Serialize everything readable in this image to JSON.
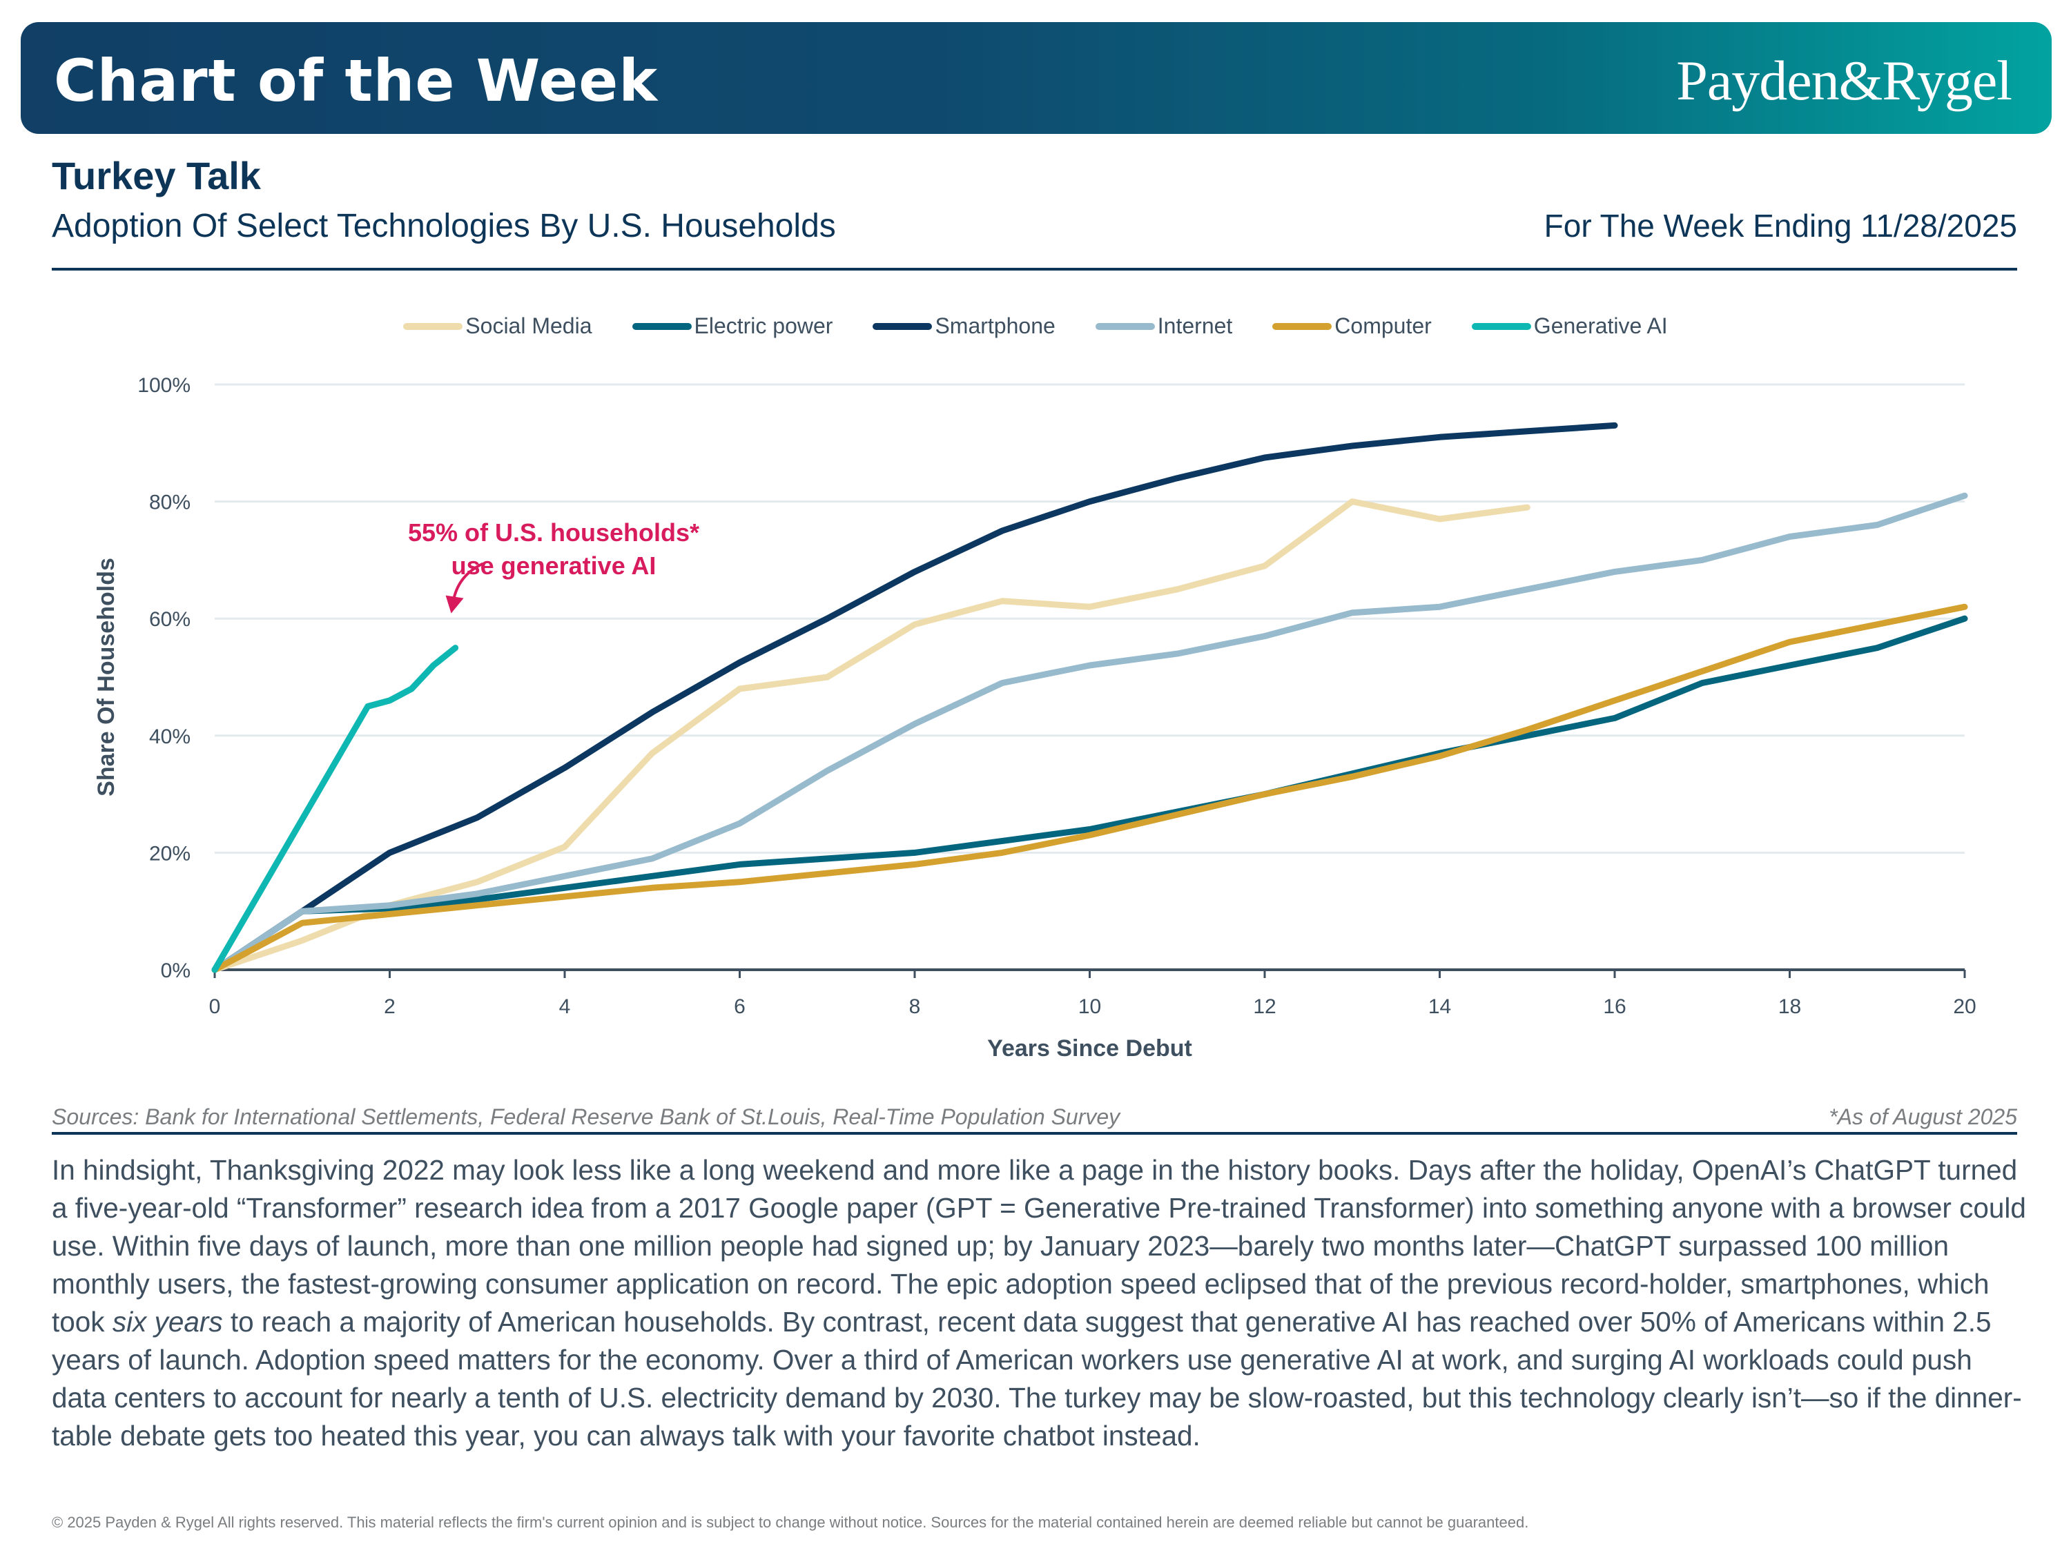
{
  "banner": {
    "title": "Chart of the Week",
    "logo": "Payden&Rygel"
  },
  "header": {
    "title": "Turkey Talk",
    "subtitle": "Adoption Of Select Technologies By U.S. Households",
    "week": "For The Week Ending 11/28/2025"
  },
  "chart_data": {
    "type": "line",
    "title": "Adoption Of Select Technologies By U.S. Households",
    "xlabel": "Years Since Debut",
    "ylabel": "Share Of Households",
    "xlim": [
      0,
      20
    ],
    "ylim": [
      0,
      100
    ],
    "xticks": [
      0,
      2,
      4,
      6,
      8,
      10,
      12,
      14,
      16,
      18,
      20
    ],
    "yticks": [
      0,
      20,
      40,
      60,
      80,
      100
    ],
    "ytick_labels": [
      "0%",
      "20%",
      "40%",
      "60%",
      "80%",
      "100%"
    ],
    "grid": "horizontal",
    "legend_position": "top-center",
    "series": [
      {
        "name": "Social Media",
        "color": "#eedcac",
        "x": [
          0,
          1,
          2,
          3,
          4,
          5,
          6,
          7,
          8,
          9,
          10,
          11,
          12,
          13,
          14,
          15
        ],
        "values": [
          0,
          5,
          11,
          15,
          21,
          37,
          48,
          50,
          59,
          63,
          62,
          65,
          69,
          80,
          77,
          79
        ]
      },
      {
        "name": "Electric power",
        "color": "#04657e",
        "x": [
          0,
          1,
          2,
          3,
          4,
          5,
          6,
          7,
          8,
          9,
          10,
          11,
          12,
          13,
          14,
          15,
          16,
          17,
          18,
          19,
          20
        ],
        "values": [
          0,
          10,
          10.5,
          12,
          14,
          16,
          18,
          19,
          20,
          22,
          24,
          27,
          30,
          33.5,
          37,
          40,
          43,
          49,
          52,
          55,
          60
        ]
      },
      {
        "name": "Smartphone",
        "color": "#0c3760",
        "x": [
          0,
          1,
          2,
          3,
          4,
          5,
          6,
          7,
          8,
          9,
          10,
          11,
          12,
          13,
          14,
          15,
          16
        ],
        "values": [
          0,
          10,
          20,
          26,
          34.5,
          44,
          52.5,
          60,
          68,
          75,
          80,
          84,
          87.5,
          89.5,
          91,
          92,
          93
        ]
      },
      {
        "name": "Internet",
        "color": "#97bacd",
        "x": [
          0,
          1,
          2,
          3,
          4,
          5,
          6,
          7,
          8,
          9,
          10,
          11,
          12,
          13,
          14,
          15,
          16,
          17,
          18,
          19,
          20
        ],
        "values": [
          0,
          10,
          11,
          13,
          16,
          19,
          25,
          34,
          42,
          49,
          52,
          54,
          57,
          61,
          62,
          65,
          68,
          70,
          74,
          76,
          81
        ]
      },
      {
        "name": "Computer",
        "color": "#d4a12e",
        "x": [
          0,
          1,
          2,
          3,
          4,
          5,
          6,
          7,
          8,
          9,
          10,
          11,
          12,
          13,
          14,
          15,
          16,
          17,
          18,
          19,
          20
        ],
        "values": [
          0,
          8,
          9.5,
          11,
          12.5,
          14,
          15,
          16.5,
          18,
          20,
          23,
          26.5,
          30,
          33,
          36.5,
          41,
          46,
          51,
          56,
          59,
          62
        ]
      },
      {
        "name": "Generative AI",
        "color": "#0fb7b2",
        "x": [
          0,
          1.75,
          2,
          2.25,
          2.5,
          2.75
        ],
        "values": [
          0,
          45,
          46,
          48,
          52,
          55
        ]
      }
    ],
    "annotation": {
      "text_lines": [
        "55% of U.S. households*",
        "use generative AI"
      ],
      "color": "#d81b5c",
      "points_to": {
        "x": 2.75,
        "y": 55
      }
    }
  },
  "footnotes": {
    "sources": "Sources: Bank for International Settlements, Federal Reserve Bank of St.Louis, Real-Time Population Survey",
    "as_of": "*As of August 2025"
  },
  "body": {
    "p1": "In hindsight, Thanksgiving 2022 may look less like a long weekend and more like a page in the history books. Days after the holiday, OpenAI’s ChatGPT turned a five-year-old “Transformer” research idea from a 2017 Google paper (GPT = Generative Pre-trained Transformer) into something anyone with a browser could use. Within five days of launch, more than one million people had signed up; by January 2023—barely two months later—ChatGPT surpassed 100 million monthly users, the fastest-growing consumer application on record. The epic adoption speed eclipsed that of the previous record-holder, smartphones, which took ",
    "emph": "six years",
    "p2": " to reach a majority of American households. By contrast, recent data suggest that generative AI has reached over 50% of Americans within 2.5 years of launch. Adoption speed matters for the economy. Over a third of American workers use generative AI at work, and surging AI workloads could push data centers to account for nearly a tenth of U.S. electricity demand by 2030. The turkey may be slow-roasted, but this technology clearly isn’t—so if the dinner-table debate gets too heated this year, you can always talk with your favorite chatbot instead."
  },
  "footer": {
    "disclaimer": "© 2025 Payden & Rygel All rights reserved. This material reflects the firm's current opinion and is subject to change without notice. Sources for the material contained herein are deemed reliable but cannot be guaranteed."
  }
}
